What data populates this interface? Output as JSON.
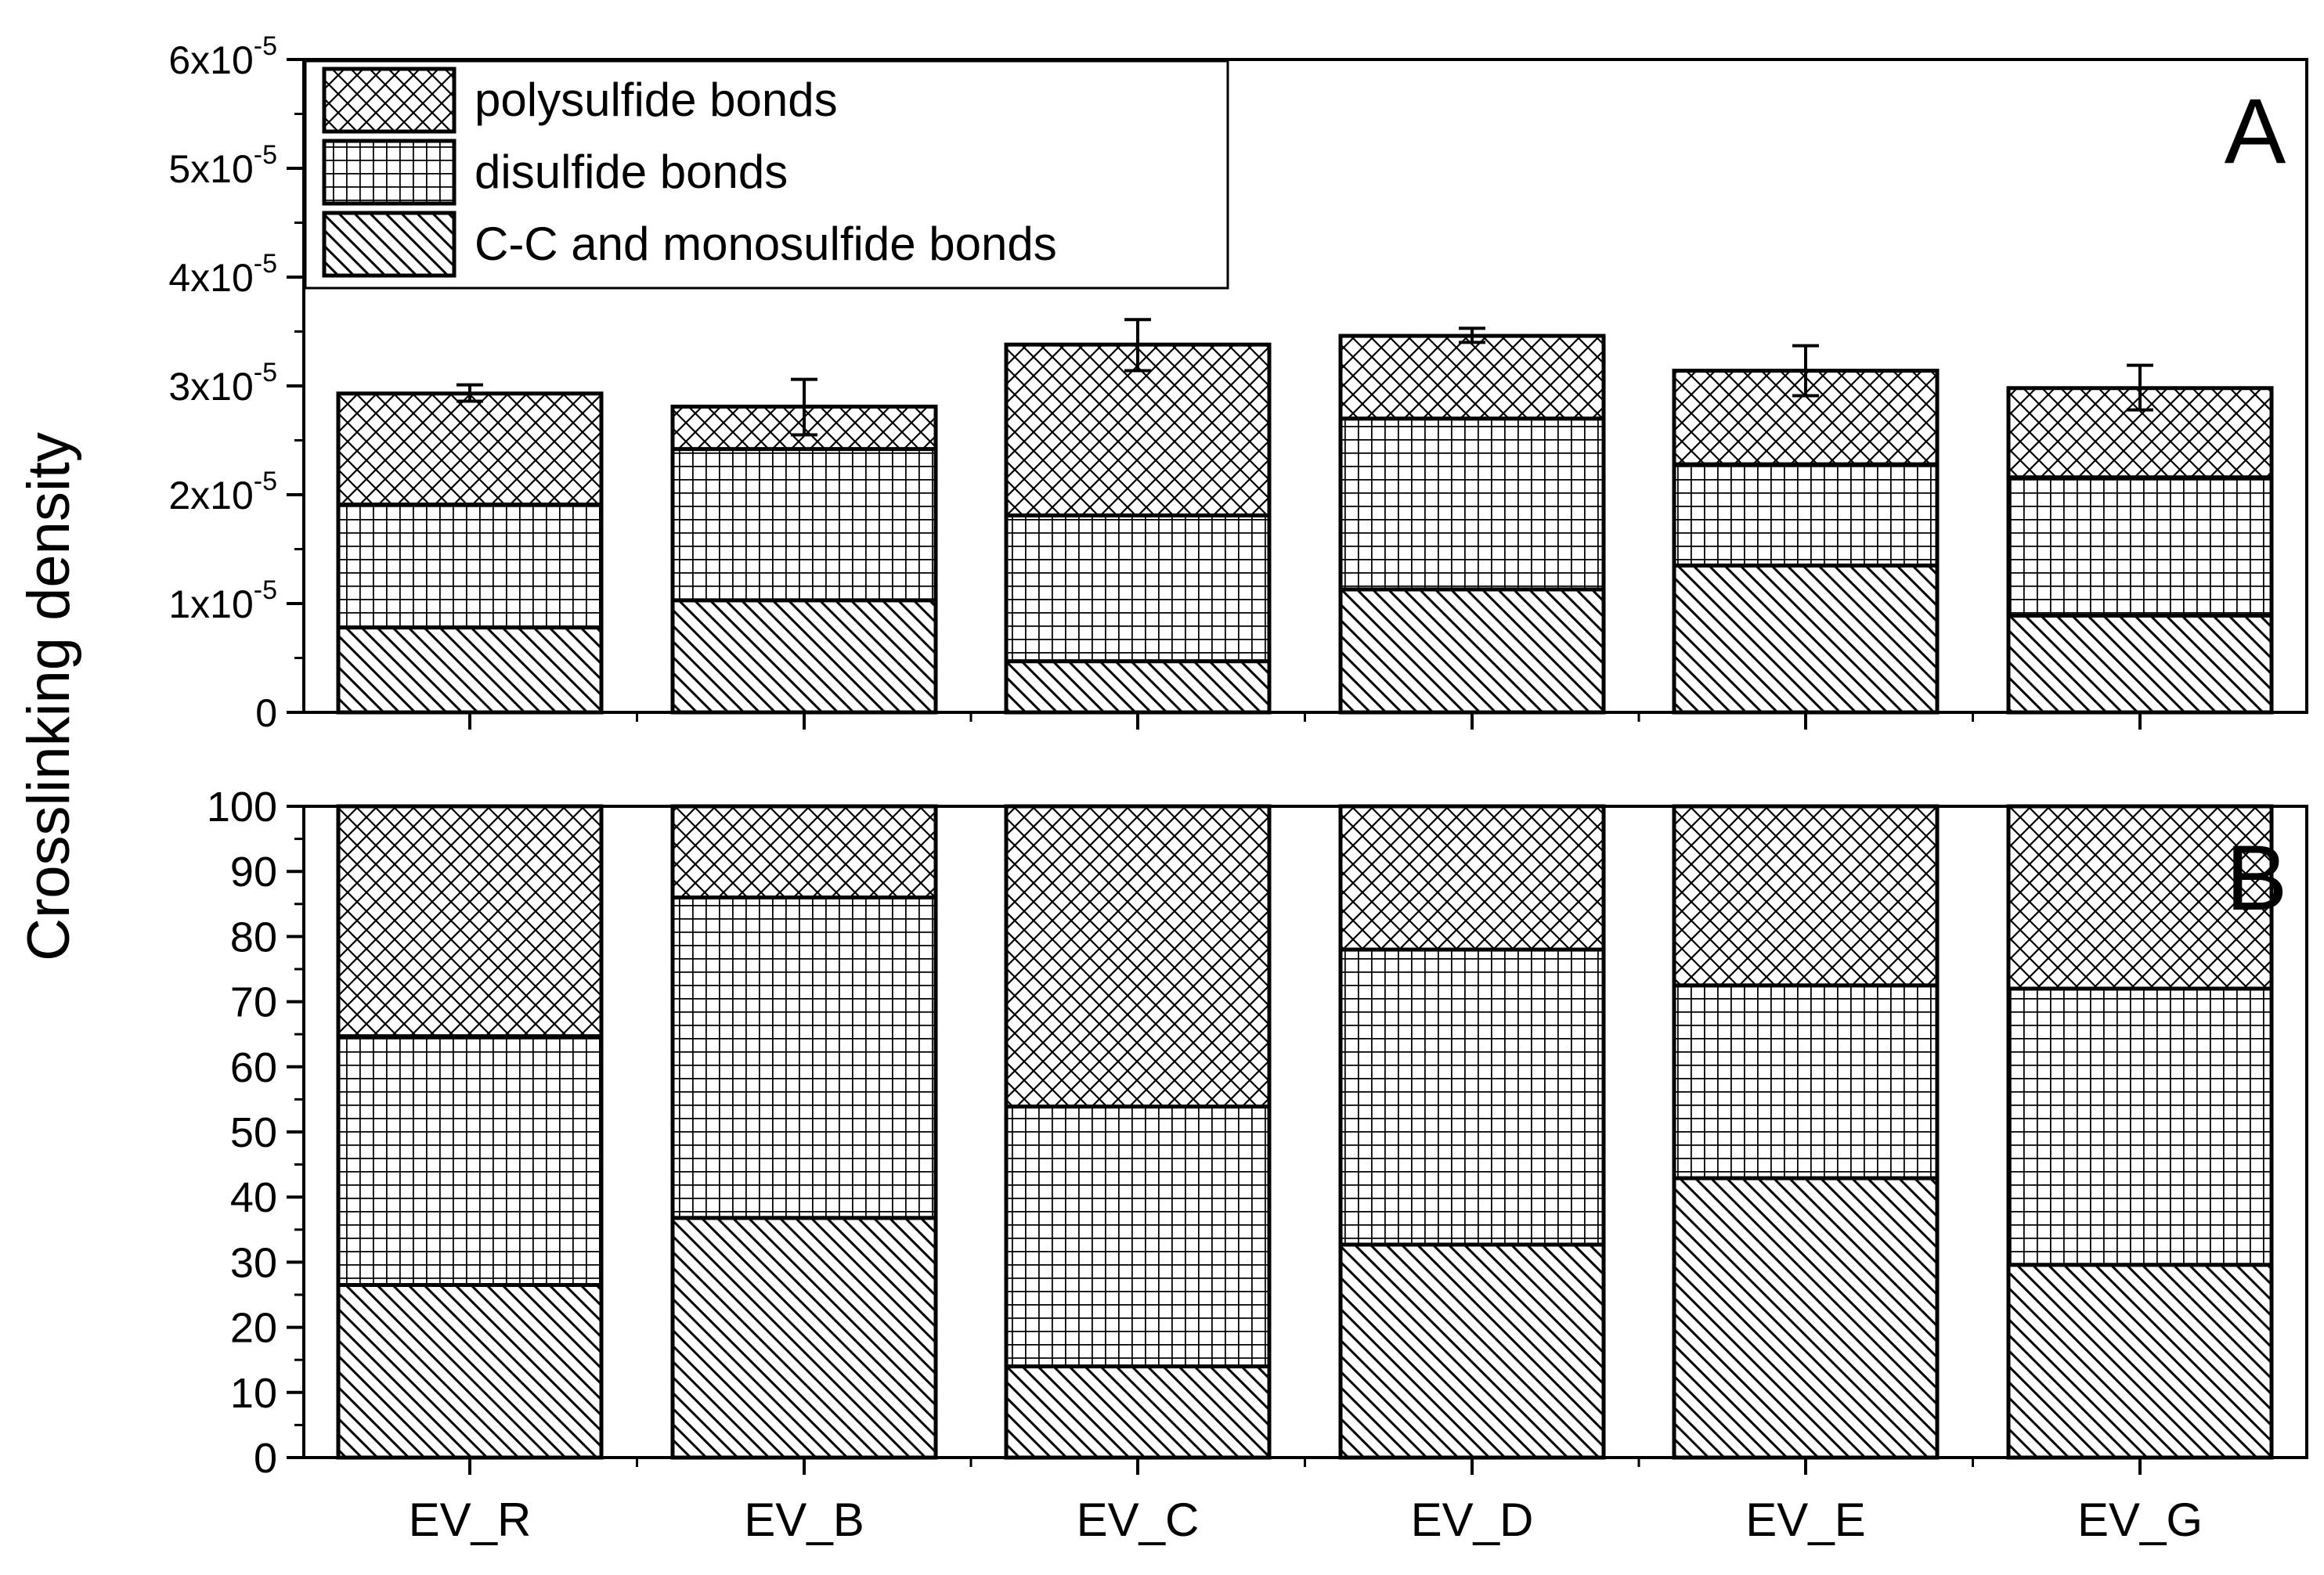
{
  "chart_data": [
    {
      "panel_label": "A",
      "type": "bar",
      "stacked": true,
      "categories": [
        "EV_R",
        "EV_B",
        "EV_C",
        "EV_D",
        "EV_E",
        "EV_G"
      ],
      "series": [
        {
          "name": "C-C and monosulfide bonds",
          "pattern": "diagonal-hatch",
          "values": [
            7.8e-06,
            1.03e-05,
            4.7e-06,
            1.13e-05,
            1.35e-05,
            8.9e-06
          ]
        },
        {
          "name": "disulfide bonds",
          "pattern": "square-grid",
          "values": [
            1.13e-05,
            1.39e-05,
            1.34e-05,
            1.57e-05,
            9.3e-06,
            1.27e-05
          ]
        },
        {
          "name": "polysulfide bonds",
          "pattern": "crosshatch",
          "values": [
            1.02e-05,
            3.9e-06,
            1.57e-05,
            7.6e-06,
            8.6e-06,
            8.2e-06
          ]
        }
      ],
      "totals": [
        2.93e-05,
        2.81e-05,
        3.38e-05,
        3.46e-05,
        3.14e-05,
        2.98e-05
      ],
      "error_bars": [
        {
          "center": 2.93e-05,
          "low": 2.86e-05,
          "high": 3.01e-05
        },
        {
          "center": 2.81e-05,
          "low": 2.55e-05,
          "high": 3.06e-05
        },
        {
          "center": 3.38e-05,
          "low": 3.14e-05,
          "high": 3.61e-05
        },
        {
          "center": 3.46e-05,
          "low": 3.4e-05,
          "high": 3.53e-05
        },
        {
          "center": 3.14e-05,
          "low": 2.91e-05,
          "high": 3.37e-05
        },
        {
          "center": 2.98e-05,
          "low": 2.78e-05,
          "high": 3.19e-05
        }
      ],
      "ylim": [
        0,
        6e-05
      ],
      "yticks": [
        0,
        1e-05,
        2e-05,
        3e-05,
        4e-05,
        5e-05,
        6e-05
      ],
      "ytick_labels": [
        {
          "base": "0",
          "exp": ""
        },
        {
          "base": "1x10",
          "exp": "-5"
        },
        {
          "base": "2x10",
          "exp": "-5"
        },
        {
          "base": "3x10",
          "exp": "-5"
        },
        {
          "base": "4x10",
          "exp": "-5"
        },
        {
          "base": "5x10",
          "exp": "-5"
        },
        {
          "base": "6x10",
          "exp": "-5"
        }
      ],
      "legend": {
        "position": "top-left",
        "entries": [
          "polysulfide bonds",
          "disulfide bonds",
          "C-C and monosulfide bonds"
        ]
      }
    },
    {
      "panel_label": "B",
      "type": "bar",
      "stacked": true,
      "categories": [
        "EV_R",
        "EV_B",
        "EV_C",
        "EV_D",
        "EV_E",
        "EV_G"
      ],
      "series": [
        {
          "name": "C-C and monosulfide bonds",
          "pattern": "diagonal-hatch",
          "values": [
            26.5,
            36.8,
            14,
            32.7,
            42.9,
            29.6
          ]
        },
        {
          "name": "disulfide bonds",
          "pattern": "square-grid",
          "values": [
            38.2,
            49.2,
            39.9,
            45.3,
            29.6,
            42.4
          ]
        },
        {
          "name": "polysulfide bonds",
          "pattern": "crosshatch",
          "values": [
            35.3,
            14,
            46.1,
            22,
            27.5,
            28
          ]
        }
      ],
      "ylim": [
        0,
        100
      ],
      "yticks": [
        0,
        10,
        20,
        30,
        40,
        50,
        60,
        70,
        80,
        90,
        100
      ],
      "xticks": [
        "EV_R",
        "EV_B",
        "EV_C",
        "EV_D",
        "EV_E",
        "EV_G"
      ]
    }
  ],
  "ylabel": "Crosslinking density"
}
